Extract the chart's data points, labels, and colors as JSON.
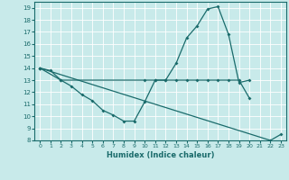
{
  "xlabel": "Humidex (Indice chaleur)",
  "bg_color": "#c8eaea",
  "line_color": "#1a6b6b",
  "grid_color": "#ffffff",
  "xlim": [
    -0.5,
    23.5
  ],
  "ylim": [
    8,
    19.5
  ],
  "xticks": [
    0,
    1,
    2,
    3,
    4,
    5,
    6,
    7,
    8,
    9,
    10,
    11,
    12,
    13,
    14,
    15,
    16,
    17,
    18,
    19,
    20,
    21,
    22,
    23
  ],
  "yticks": [
    8,
    9,
    10,
    11,
    12,
    13,
    14,
    15,
    16,
    17,
    18,
    19
  ],
  "series1_x": [
    0,
    1,
    2,
    3,
    4,
    5,
    6,
    7,
    8,
    9,
    10,
    11,
    12,
    13,
    14,
    15,
    16,
    17,
    18,
    19,
    20
  ],
  "series1_y": [
    14.0,
    13.8,
    13.0,
    12.5,
    11.8,
    11.3,
    10.5,
    10.1,
    9.6,
    9.6,
    11.2,
    13.0,
    13.0,
    14.4,
    16.5,
    17.5,
    18.9,
    19.1,
    16.8,
    12.8,
    13.0
  ],
  "series2_x": [
    0,
    2,
    10,
    11,
    12,
    13,
    14,
    15,
    16,
    17,
    18,
    19,
    20
  ],
  "series2_y": [
    14.0,
    13.0,
    13.0,
    13.0,
    13.0,
    13.0,
    13.0,
    13.0,
    13.0,
    13.0,
    13.0,
    13.0,
    11.5
  ],
  "series3_x": [
    0,
    22,
    23
  ],
  "series3_y": [
    14.0,
    8.0,
    8.5
  ]
}
